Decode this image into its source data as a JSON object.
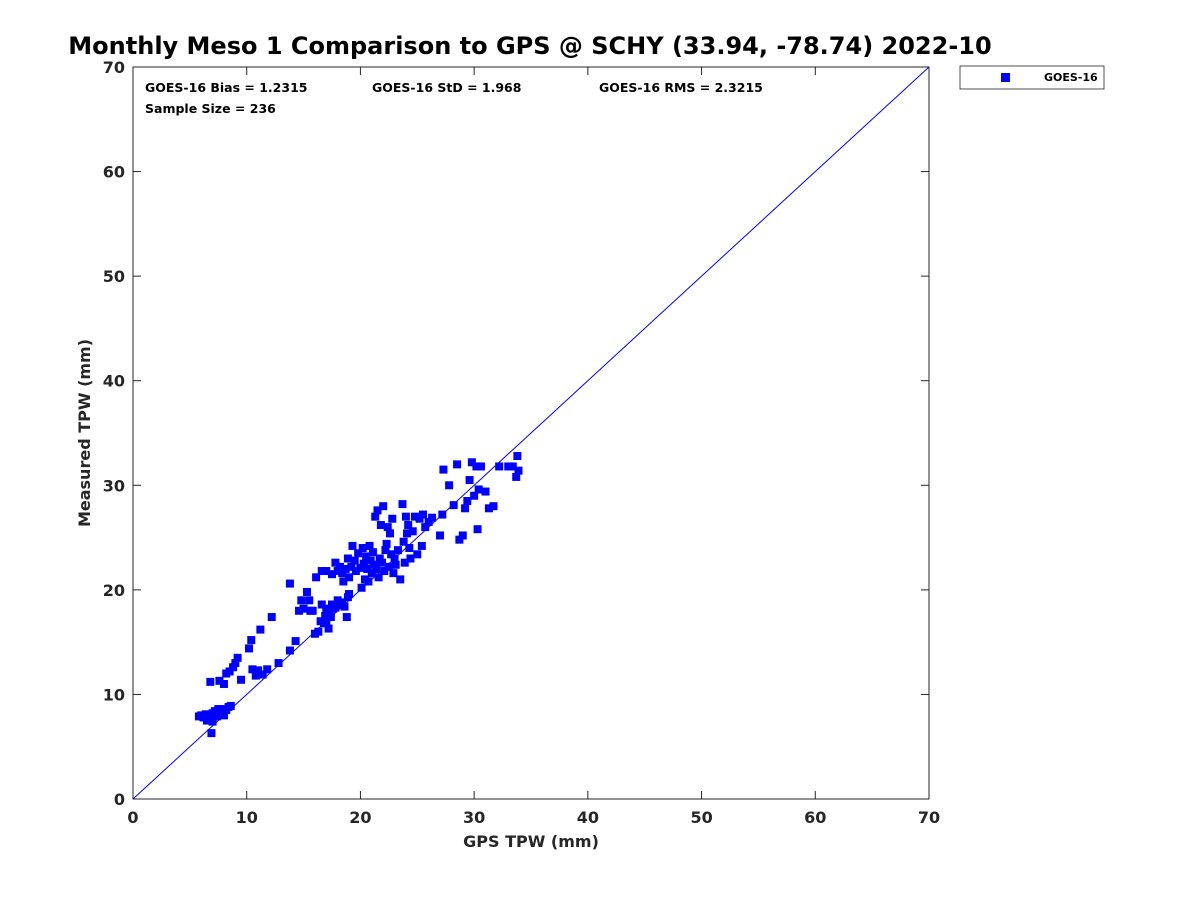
{
  "chart_data": {
    "type": "scatter",
    "title": "Monthly Meso 1 Comparison to GPS @ SCHY (33.94, -78.74) 2022-10",
    "xlabel": "GPS TPW (mm)",
    "ylabel": "Measured TPW (mm)",
    "xlim": [
      0,
      70
    ],
    "ylim": [
      0,
      70
    ],
    "xticks": [
      0,
      10,
      20,
      30,
      40,
      50,
      60,
      70
    ],
    "yticks": [
      0,
      10,
      20,
      30,
      40,
      50,
      60,
      70
    ],
    "grid": false,
    "legend_position": "top-right-outside",
    "reference_line": {
      "x": [
        0,
        70
      ],
      "y": [
        0,
        70
      ],
      "color": "#0000ff"
    },
    "annotations": {
      "bias": "GOES-16 Bias = 1.2315",
      "std": "GOES-16 StD = 1.968",
      "rms": "GOES-16 RMS = 2.3215",
      "sample": "Sample Size = 236"
    },
    "series": [
      {
        "name": "GOES-16",
        "color": "#0000ff",
        "marker": "square",
        "points": [
          [
            5.8,
            7.9
          ],
          [
            6.0,
            8.0
          ],
          [
            6.2,
            7.8
          ],
          [
            6.4,
            8.1
          ],
          [
            6.5,
            7.5
          ],
          [
            6.6,
            8.0
          ],
          [
            6.8,
            7.7
          ],
          [
            6.9,
            6.3
          ],
          [
            7.0,
            8.2
          ],
          [
            7.0,
            7.4
          ],
          [
            7.2,
            8.4
          ],
          [
            7.4,
            7.9
          ],
          [
            7.5,
            8.6
          ],
          [
            7.8,
            8.3
          ],
          [
            8.0,
            8.0
          ],
          [
            8.2,
            8.5
          ],
          [
            8.4,
            8.8
          ],
          [
            8.6,
            8.9
          ],
          [
            7.8,
            8.6
          ],
          [
            6.8,
            11.2
          ],
          [
            7.6,
            11.3
          ],
          [
            8.0,
            11.0
          ],
          [
            8.2,
            12.0
          ],
          [
            8.5,
            12.2
          ],
          [
            8.8,
            12.6
          ],
          [
            9.0,
            13.0
          ],
          [
            9.2,
            13.5
          ],
          [
            9.5,
            11.4
          ],
          [
            10.2,
            14.4
          ],
          [
            10.4,
            15.2
          ],
          [
            10.5,
            12.4
          ],
          [
            10.8,
            11.8
          ],
          [
            11.0,
            12.3
          ],
          [
            11.2,
            16.2
          ],
          [
            11.4,
            11.9
          ],
          [
            11.8,
            12.4
          ],
          [
            12.2,
            17.4
          ],
          [
            12.8,
            13.0
          ],
          [
            13.8,
            14.2
          ],
          [
            14.3,
            15.1
          ],
          [
            13.8,
            20.6
          ],
          [
            14.6,
            18.0
          ],
          [
            14.8,
            19.0
          ],
          [
            15.0,
            18.2
          ],
          [
            15.3,
            19.8
          ],
          [
            15.5,
            19.0
          ],
          [
            15.6,
            18.0
          ],
          [
            15.8,
            18.0
          ],
          [
            16.0,
            15.8
          ],
          [
            16.1,
            21.2
          ],
          [
            16.3,
            16.0
          ],
          [
            16.5,
            17.0
          ],
          [
            16.6,
            18.6
          ],
          [
            16.8,
            16.8
          ],
          [
            16.9,
            17.5
          ],
          [
            17.0,
            18.2
          ],
          [
            17.0,
            17.0
          ],
          [
            17.2,
            16.3
          ],
          [
            17.3,
            18.0
          ],
          [
            17.4,
            17.4
          ],
          [
            17.5,
            18.6
          ],
          [
            17.6,
            18.2
          ],
          [
            17.8,
            18.3
          ],
          [
            18.0,
            19.0
          ],
          [
            18.2,
            18.6
          ],
          [
            18.4,
            18.8
          ],
          [
            18.6,
            18.4
          ],
          [
            18.8,
            17.4
          ],
          [
            18.9,
            19.3
          ],
          [
            19.0,
            19.6
          ],
          [
            16.6,
            21.8
          ],
          [
            17.0,
            21.8
          ],
          [
            17.5,
            21.5
          ],
          [
            17.8,
            22.6
          ],
          [
            18.0,
            21.8
          ],
          [
            18.2,
            22.2
          ],
          [
            18.4,
            21.6
          ],
          [
            18.5,
            20.8
          ],
          [
            18.7,
            22.0
          ],
          [
            18.9,
            23.0
          ],
          [
            19.0,
            21.2
          ],
          [
            19.2,
            22.2
          ],
          [
            19.3,
            24.2
          ],
          [
            19.5,
            22.8
          ],
          [
            19.6,
            21.8
          ],
          [
            19.8,
            23.5
          ],
          [
            20.0,
            22.1
          ],
          [
            20.1,
            20.2
          ],
          [
            20.2,
            24.0
          ],
          [
            20.3,
            22.5
          ],
          [
            20.4,
            21.0
          ],
          [
            20.5,
            23.2
          ],
          [
            20.6,
            22.0
          ],
          [
            20.7,
            20.8
          ],
          [
            20.8,
            24.2
          ],
          [
            20.9,
            22.8
          ],
          [
            21.0,
            21.6
          ],
          [
            21.1,
            23.6
          ],
          [
            21.2,
            22.4
          ],
          [
            21.3,
            27.0
          ],
          [
            21.4,
            22.0
          ],
          [
            21.5,
            27.6
          ],
          [
            21.6,
            21.2
          ],
          [
            21.7,
            23.0
          ],
          [
            21.8,
            26.2
          ],
          [
            21.9,
            22.6
          ],
          [
            22.0,
            28.0
          ],
          [
            22.1,
            21.8
          ],
          [
            22.2,
            23.8
          ],
          [
            22.3,
            24.4
          ],
          [
            22.4,
            26.0
          ],
          [
            22.5,
            22.2
          ],
          [
            22.6,
            25.4
          ],
          [
            22.7,
            23.4
          ],
          [
            22.8,
            26.8
          ],
          [
            22.9,
            21.6
          ],
          [
            23.0,
            23.0
          ],
          [
            23.1,
            22.4
          ],
          [
            23.3,
            23.8
          ],
          [
            23.5,
            21.0
          ],
          [
            23.7,
            28.2
          ],
          [
            23.8,
            24.6
          ],
          [
            23.9,
            22.6
          ],
          [
            24.0,
            27.0
          ],
          [
            24.1,
            25.4
          ],
          [
            24.2,
            26.2
          ],
          [
            24.3,
            24.0
          ],
          [
            24.4,
            23.0
          ],
          [
            24.6,
            25.6
          ],
          [
            24.8,
            27.0
          ],
          [
            25.0,
            23.4
          ],
          [
            25.2,
            26.8
          ],
          [
            25.4,
            24.2
          ],
          [
            25.5,
            27.2
          ],
          [
            25.7,
            26.0
          ],
          [
            26.0,
            26.5
          ],
          [
            26.3,
            26.9
          ],
          [
            27.0,
            25.2
          ],
          [
            27.2,
            27.2
          ],
          [
            27.3,
            31.5
          ],
          [
            27.8,
            30.0
          ],
          [
            28.2,
            28.1
          ],
          [
            28.5,
            32.0
          ],
          [
            28.7,
            24.8
          ],
          [
            29.0,
            25.2
          ],
          [
            29.2,
            27.8
          ],
          [
            29.4,
            28.5
          ],
          [
            29.6,
            30.5
          ],
          [
            29.8,
            32.2
          ],
          [
            30.0,
            29.0
          ],
          [
            30.2,
            31.8
          ],
          [
            30.4,
            29.6
          ],
          [
            30.6,
            31.8
          ],
          [
            30.3,
            25.8
          ],
          [
            31.0,
            29.4
          ],
          [
            31.3,
            27.8
          ],
          [
            31.7,
            28.0
          ],
          [
            32.2,
            31.8
          ],
          [
            33.0,
            31.8
          ],
          [
            33.4,
            31.8
          ],
          [
            33.7,
            30.8
          ],
          [
            33.9,
            31.4
          ],
          [
            33.8,
            32.8
          ]
        ]
      }
    ]
  }
}
